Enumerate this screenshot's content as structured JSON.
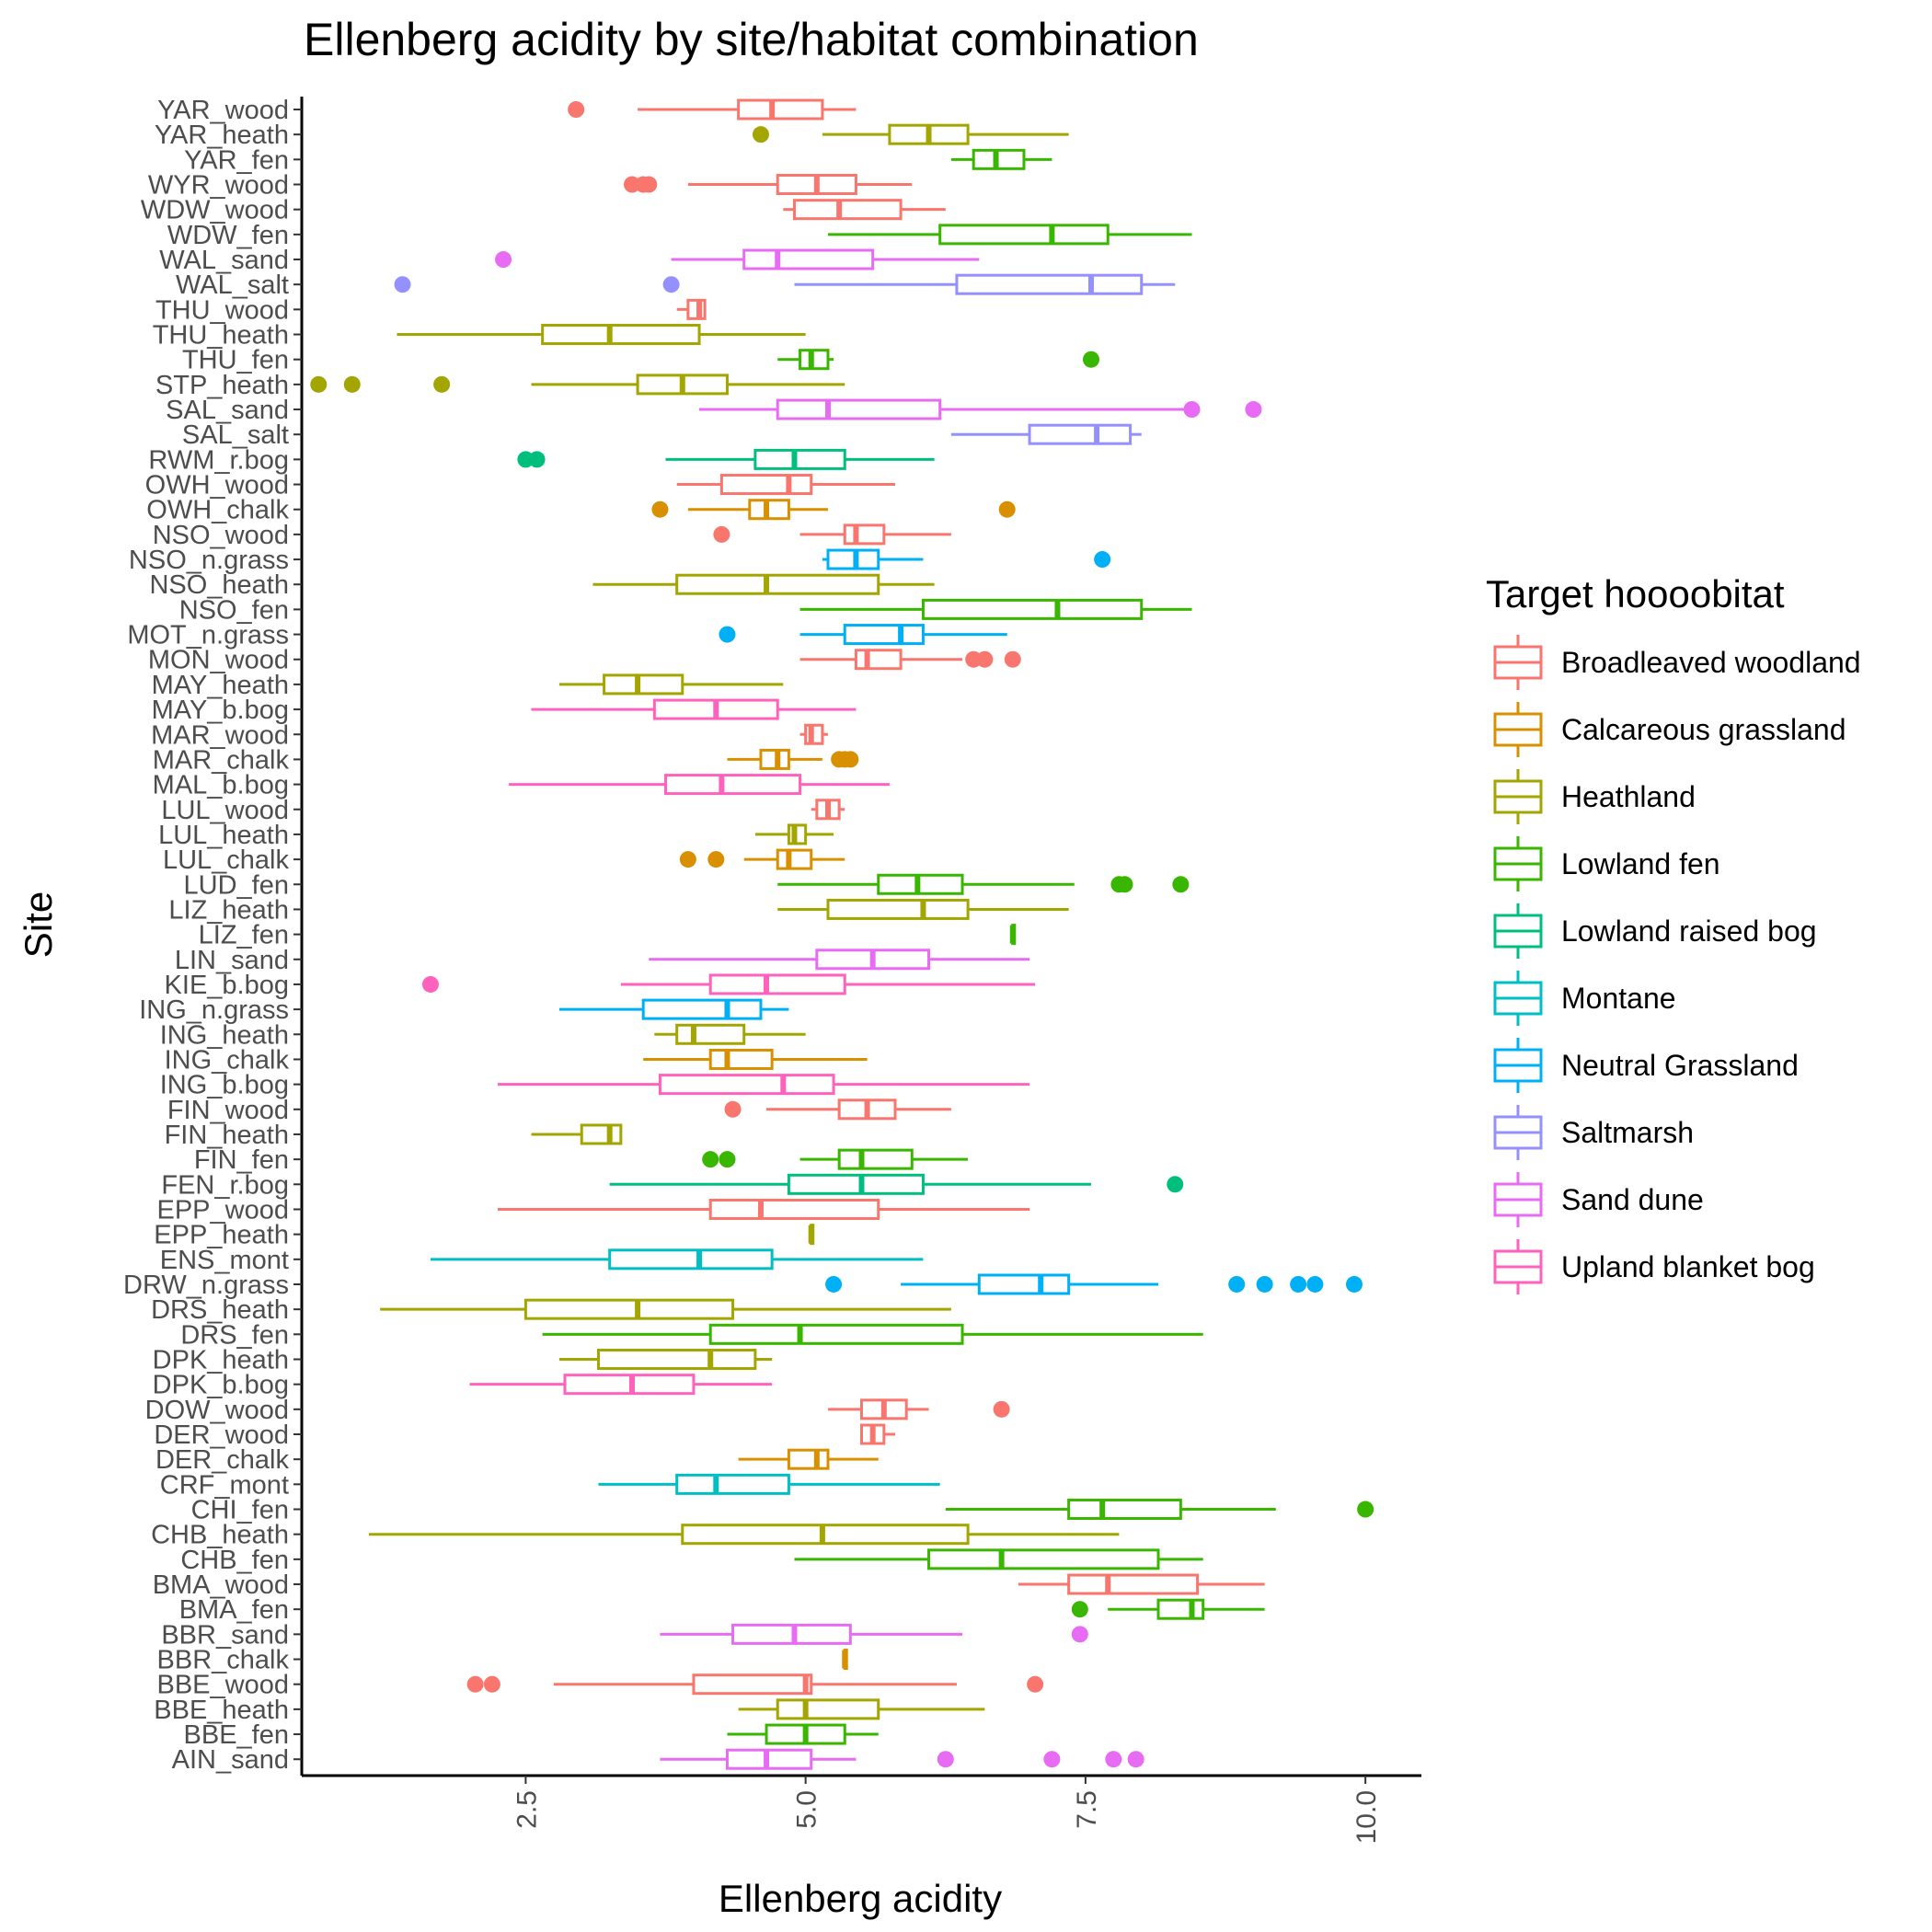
{
  "chart_data": {
    "type": "boxplot",
    "orientation": "horizontal",
    "title": "Ellenberg acidity by site/habitat combination",
    "xlabel": "Ellenberg acidity",
    "ylabel": "Site",
    "xlim": [
      0.5,
      10.5
    ],
    "x_ticks": [
      2.5,
      5.0,
      7.5,
      10.0
    ],
    "x_tick_labels": [
      "2.5",
      "5.0",
      "7.5",
      "10.0"
    ],
    "legend": {
      "title": "Target hoooobitat",
      "position": "right",
      "entries": [
        {
          "name": "Broadleaved woodland",
          "color": "#F8766D"
        },
        {
          "name": "Calcareous grassland",
          "color": "#D89000"
        },
        {
          "name": "Heathland",
          "color": "#A3A500"
        },
        {
          "name": "Lowland fen",
          "color": "#39B600"
        },
        {
          "name": "Lowland raised bog",
          "color": "#00BF7D"
        },
        {
          "name": "Montane",
          "color": "#00BFC4"
        },
        {
          "name": "Neutral Grassland",
          "color": "#00B0F6"
        },
        {
          "name": "Saltmarsh",
          "color": "#9590FF"
        },
        {
          "name": "Sand dune",
          "color": "#E76BF3"
        },
        {
          "name": "Upland blanket bog",
          "color": "#FF62BC"
        }
      ]
    },
    "sites": [
      {
        "label": "YAR_wood",
        "h": 0,
        "lo": 3.5,
        "q1": 4.4,
        "med": 4.7,
        "q3": 5.15,
        "hi": 5.45,
        "out": [
          2.95
        ]
      },
      {
        "label": "YAR_heath",
        "h": 2,
        "lo": 5.15,
        "q1": 5.75,
        "med": 6.1,
        "q3": 6.45,
        "hi": 7.35,
        "out": [
          4.6
        ]
      },
      {
        "label": "YAR_fen",
        "h": 3,
        "lo": 6.3,
        "q1": 6.5,
        "med": 6.7,
        "q3": 6.95,
        "hi": 7.2,
        "out": []
      },
      {
        "label": "WYR_wood",
        "h": 0,
        "lo": 3.95,
        "q1": 4.75,
        "med": 5.1,
        "q3": 5.45,
        "hi": 5.95,
        "out": [
          3.45,
          3.55,
          3.6
        ]
      },
      {
        "label": "WDW_wood",
        "h": 0,
        "lo": 4.8,
        "q1": 4.9,
        "med": 5.3,
        "q3": 5.85,
        "hi": 6.25,
        "out": []
      },
      {
        "label": "WDW_fen",
        "h": 3,
        "lo": 5.2,
        "q1": 6.2,
        "med": 7.2,
        "q3": 7.7,
        "hi": 8.45,
        "out": []
      },
      {
        "label": "WAL_sand",
        "h": 8,
        "lo": 3.8,
        "q1": 4.45,
        "med": 4.75,
        "q3": 5.6,
        "hi": 6.55,
        "out": [
          2.3
        ]
      },
      {
        "label": "WAL_salt",
        "h": 7,
        "lo": 4.9,
        "q1": 6.35,
        "med": 7.55,
        "q3": 8.0,
        "hi": 8.3,
        "out": [
          1.4,
          3.8
        ]
      },
      {
        "label": "THU_wood",
        "h": 0,
        "lo": 3.85,
        "q1": 3.95,
        "med": 4.05,
        "q3": 4.1,
        "hi": 4.1,
        "out": []
      },
      {
        "label": "THU_heath",
        "h": 2,
        "lo": 1.35,
        "q1": 2.65,
        "med": 3.25,
        "q3": 4.05,
        "hi": 5.0,
        "out": []
      },
      {
        "label": "THU_fen",
        "h": 3,
        "lo": 4.75,
        "q1": 4.95,
        "med": 5.05,
        "q3": 5.2,
        "hi": 5.25,
        "out": [
          7.55
        ]
      },
      {
        "label": "STP_heath",
        "h": 2,
        "lo": 2.55,
        "q1": 3.5,
        "med": 3.9,
        "q3": 4.3,
        "hi": 5.35,
        "out": [
          0.65,
          0.95,
          1.75
        ]
      },
      {
        "label": "SAL_sand",
        "h": 8,
        "lo": 4.05,
        "q1": 4.75,
        "med": 5.2,
        "q3": 6.2,
        "hi": 8.45,
        "out": [
          8.45,
          9.0
        ]
      },
      {
        "label": "SAL_salt",
        "h": 7,
        "lo": 6.3,
        "q1": 7.0,
        "med": 7.6,
        "q3": 7.9,
        "hi": 8.0,
        "out": []
      },
      {
        "label": "RWM_r.bog",
        "h": 4,
        "lo": 3.75,
        "q1": 4.55,
        "med": 4.9,
        "q3": 5.35,
        "hi": 6.15,
        "out": [
          2.5,
          2.6
        ]
      },
      {
        "label": "OWH_wood",
        "h": 0,
        "lo": 3.85,
        "q1": 4.25,
        "med": 4.85,
        "q3": 5.05,
        "hi": 5.8,
        "out": []
      },
      {
        "label": "OWH_chalk",
        "h": 1,
        "lo": 3.95,
        "q1": 4.5,
        "med": 4.65,
        "q3": 4.85,
        "hi": 5.2,
        "out": [
          3.7,
          6.8
        ]
      },
      {
        "label": "NSO_wood",
        "h": 0,
        "lo": 4.95,
        "q1": 5.35,
        "med": 5.45,
        "q3": 5.7,
        "hi": 6.3,
        "out": [
          4.25
        ]
      },
      {
        "label": "NSO_n.grass",
        "h": 6,
        "lo": 5.15,
        "q1": 5.2,
        "med": 5.45,
        "q3": 5.65,
        "hi": 6.05,
        "out": [
          7.65
        ]
      },
      {
        "label": "NSO_heath",
        "h": 2,
        "lo": 3.1,
        "q1": 3.85,
        "med": 4.65,
        "q3": 5.65,
        "hi": 6.15,
        "out": []
      },
      {
        "label": "NSO_fen",
        "h": 3,
        "lo": 4.95,
        "q1": 6.05,
        "med": 7.25,
        "q3": 8.0,
        "hi": 8.45,
        "out": []
      },
      {
        "label": "MOT_n.grass",
        "h": 6,
        "lo": 4.95,
        "q1": 5.35,
        "med": 5.85,
        "q3": 6.05,
        "hi": 6.8,
        "out": [
          4.3
        ]
      },
      {
        "label": "MON_wood",
        "h": 0,
        "lo": 4.95,
        "q1": 5.45,
        "med": 5.55,
        "q3": 5.85,
        "hi": 6.4,
        "out": [
          6.5,
          6.6,
          6.85
        ]
      },
      {
        "label": "MAY_heath",
        "h": 2,
        "lo": 2.8,
        "q1": 3.2,
        "med": 3.5,
        "q3": 3.9,
        "hi": 4.8,
        "out": []
      },
      {
        "label": "MAY_b.bog",
        "h": 9,
        "lo": 2.55,
        "q1": 3.65,
        "med": 4.2,
        "q3": 4.75,
        "hi": 5.45,
        "out": []
      },
      {
        "label": "MAR_wood",
        "h": 0,
        "lo": 4.95,
        "q1": 5.0,
        "med": 5.05,
        "q3": 5.15,
        "hi": 5.2,
        "out": []
      },
      {
        "label": "MAR_chalk",
        "h": 1,
        "lo": 4.3,
        "q1": 4.6,
        "med": 4.75,
        "q3": 4.85,
        "hi": 5.15,
        "out": [
          5.3,
          5.35,
          5.4
        ]
      },
      {
        "label": "MAL_b.bog",
        "h": 9,
        "lo": 2.35,
        "q1": 3.75,
        "med": 4.25,
        "q3": 4.95,
        "hi": 5.75,
        "out": []
      },
      {
        "label": "LUL_wood",
        "h": 0,
        "lo": 5.05,
        "q1": 5.1,
        "med": 5.2,
        "q3": 5.3,
        "hi": 5.35,
        "out": []
      },
      {
        "label": "LUL_heath",
        "h": 2,
        "lo": 4.55,
        "q1": 4.85,
        "med": 4.9,
        "q3": 5.0,
        "hi": 5.25,
        "out": []
      },
      {
        "label": "LUL_chalk",
        "h": 1,
        "lo": 4.45,
        "q1": 4.75,
        "med": 4.85,
        "q3": 5.05,
        "hi": 5.35,
        "out": [
          3.95,
          4.2
        ]
      },
      {
        "label": "LUD_fen",
        "h": 3,
        "lo": 4.75,
        "q1": 5.65,
        "med": 6.0,
        "q3": 6.4,
        "hi": 7.4,
        "out": [
          7.8,
          7.85,
          8.35
        ]
      },
      {
        "label": "LIZ_heath",
        "h": 2,
        "lo": 4.75,
        "q1": 5.2,
        "med": 6.05,
        "q3": 6.45,
        "hi": 7.35,
        "out": []
      },
      {
        "label": "LIZ_fen",
        "h": 3,
        "lo": 6.85,
        "q1": 6.85,
        "med": 6.85,
        "q3": 6.85,
        "hi": 6.85,
        "out": []
      },
      {
        "label": "LIN_sand",
        "h": 8,
        "lo": 3.6,
        "q1": 5.1,
        "med": 5.6,
        "q3": 6.1,
        "hi": 7.0,
        "out": []
      },
      {
        "label": "KIE_b.bog",
        "h": 9,
        "lo": 3.35,
        "q1": 4.15,
        "med": 4.65,
        "q3": 5.35,
        "hi": 7.05,
        "out": [
          1.65
        ]
      },
      {
        "label": "ING_n.grass",
        "h": 6,
        "lo": 2.8,
        "q1": 3.55,
        "med": 4.3,
        "q3": 4.6,
        "hi": 4.85,
        "out": []
      },
      {
        "label": "ING_heath",
        "h": 2,
        "lo": 3.65,
        "q1": 3.85,
        "med": 4.0,
        "q3": 4.45,
        "hi": 5.0,
        "out": []
      },
      {
        "label": "ING_chalk",
        "h": 1,
        "lo": 3.55,
        "q1": 4.15,
        "med": 4.3,
        "q3": 4.7,
        "hi": 5.55,
        "out": []
      },
      {
        "label": "ING_b.bog",
        "h": 9,
        "lo": 2.25,
        "q1": 3.7,
        "med": 4.8,
        "q3": 5.25,
        "hi": 7.0,
        "out": []
      },
      {
        "label": "FIN_wood",
        "h": 0,
        "lo": 4.65,
        "q1": 5.3,
        "med": 5.55,
        "q3": 5.8,
        "hi": 6.3,
        "out": [
          4.35
        ]
      },
      {
        "label": "FIN_heath",
        "h": 2,
        "lo": 2.55,
        "q1": 3.0,
        "med": 3.25,
        "q3": 3.35,
        "hi": 3.35,
        "out": []
      },
      {
        "label": "FIN_fen",
        "h": 3,
        "lo": 4.95,
        "q1": 5.3,
        "med": 5.5,
        "q3": 5.95,
        "hi": 6.45,
        "out": [
          4.15,
          4.3
        ]
      },
      {
        "label": "FEN_r.bog",
        "h": 4,
        "lo": 3.25,
        "q1": 4.85,
        "med": 5.5,
        "q3": 6.05,
        "hi": 7.55,
        "out": [
          8.3
        ]
      },
      {
        "label": "EPP_wood",
        "h": 0,
        "lo": 2.25,
        "q1": 4.15,
        "med": 4.6,
        "q3": 5.65,
        "hi": 7.0,
        "out": []
      },
      {
        "label": "EPP_heath",
        "h": 2,
        "lo": 5.05,
        "q1": 5.05,
        "med": 5.05,
        "q3": 5.05,
        "hi": 5.05,
        "out": []
      },
      {
        "label": "ENS_mont",
        "h": 5,
        "lo": 1.65,
        "q1": 3.25,
        "med": 4.05,
        "q3": 4.7,
        "hi": 6.05,
        "out": []
      },
      {
        "label": "DRW_n.grass",
        "h": 6,
        "lo": 5.85,
        "q1": 6.55,
        "med": 7.1,
        "q3": 7.35,
        "hi": 8.15,
        "out": [
          5.25,
          8.85,
          9.1,
          9.4,
          9.55,
          9.9
        ]
      },
      {
        "label": "DRS_heath",
        "h": 2,
        "lo": 1.2,
        "q1": 2.5,
        "med": 3.5,
        "q3": 4.35,
        "hi": 6.3,
        "out": []
      },
      {
        "label": "DRS_fen",
        "h": 3,
        "lo": 2.65,
        "q1": 4.15,
        "med": 4.95,
        "q3": 6.4,
        "hi": 8.55,
        "out": []
      },
      {
        "label": "DPK_heath",
        "h": 2,
        "lo": 2.8,
        "q1": 3.15,
        "med": 4.15,
        "q3": 4.55,
        "hi": 4.7,
        "out": []
      },
      {
        "label": "DPK_b.bog",
        "h": 9,
        "lo": 2.0,
        "q1": 2.85,
        "med": 3.45,
        "q3": 4.0,
        "hi": 4.7,
        "out": []
      },
      {
        "label": "DOW_wood",
        "h": 0,
        "lo": 5.2,
        "q1": 5.5,
        "med": 5.7,
        "q3": 5.9,
        "hi": 6.1,
        "out": [
          6.75
        ]
      },
      {
        "label": "DER_wood",
        "h": 0,
        "lo": 5.5,
        "q1": 5.5,
        "med": 5.6,
        "q3": 5.7,
        "hi": 5.8,
        "out": []
      },
      {
        "label": "DER_chalk",
        "h": 1,
        "lo": 4.4,
        "q1": 4.85,
        "med": 5.1,
        "q3": 5.2,
        "hi": 5.65,
        "out": []
      },
      {
        "label": "CRF_mont",
        "h": 5,
        "lo": 3.15,
        "q1": 3.85,
        "med": 4.2,
        "q3": 4.85,
        "hi": 6.2,
        "out": []
      },
      {
        "label": "CHI_fen",
        "h": 3,
        "lo": 6.25,
        "q1": 7.35,
        "med": 7.65,
        "q3": 8.35,
        "hi": 9.2,
        "out": [
          10.0
        ]
      },
      {
        "label": "CHB_heath",
        "h": 2,
        "lo": 1.1,
        "q1": 3.9,
        "med": 5.15,
        "q3": 6.45,
        "hi": 7.8,
        "out": []
      },
      {
        "label": "CHB_fen",
        "h": 3,
        "lo": 4.9,
        "q1": 6.1,
        "med": 6.75,
        "q3": 8.15,
        "hi": 8.55,
        "out": []
      },
      {
        "label": "BMA_wood",
        "h": 0,
        "lo": 6.9,
        "q1": 7.35,
        "med": 7.7,
        "q3": 8.5,
        "hi": 9.1,
        "out": []
      },
      {
        "label": "BMA_fen",
        "h": 3,
        "lo": 7.7,
        "q1": 8.15,
        "med": 8.45,
        "q3": 8.55,
        "hi": 9.1,
        "out": [
          7.45
        ]
      },
      {
        "label": "BBR_sand",
        "h": 8,
        "lo": 3.7,
        "q1": 4.35,
        "med": 4.9,
        "q3": 5.4,
        "hi": 6.4,
        "out": [
          7.45
        ]
      },
      {
        "label": "BBR_chalk",
        "h": 1,
        "lo": 5.35,
        "q1": 5.35,
        "med": 5.35,
        "q3": 5.35,
        "hi": 5.35,
        "out": []
      },
      {
        "label": "BBE_wood",
        "h": 0,
        "lo": 2.75,
        "q1": 4.0,
        "med": 5.0,
        "q3": 5.05,
        "hi": 6.35,
        "out": [
          2.05,
          2.2,
          7.05
        ]
      },
      {
        "label": "BBE_heath",
        "h": 2,
        "lo": 4.4,
        "q1": 4.75,
        "med": 5.0,
        "q3": 5.65,
        "hi": 6.6,
        "out": []
      },
      {
        "label": "BBE_fen",
        "h": 3,
        "lo": 4.3,
        "q1": 4.65,
        "med": 5.0,
        "q3": 5.35,
        "hi": 5.65,
        "out": []
      },
      {
        "label": "AIN_sand",
        "h": 8,
        "lo": 3.7,
        "q1": 4.3,
        "med": 4.65,
        "q3": 5.05,
        "hi": 5.45,
        "out": [
          6.25,
          7.2,
          7.75,
          7.95
        ]
      }
    ]
  }
}
